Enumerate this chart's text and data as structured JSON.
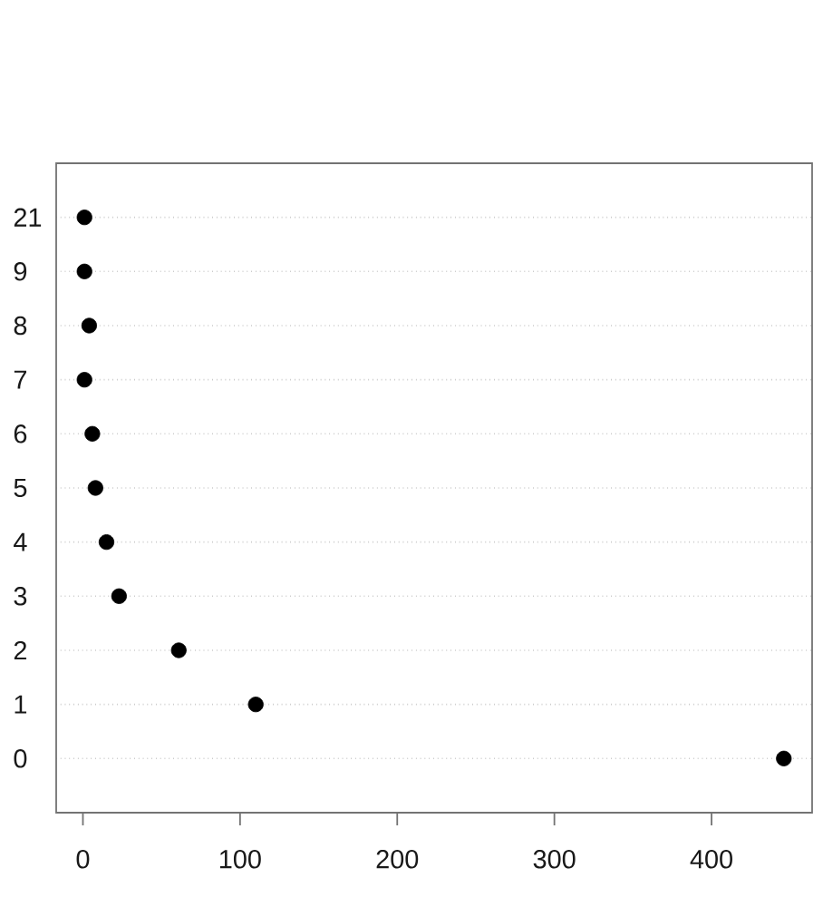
{
  "chart_data": {
    "type": "scatter",
    "orientation": "horizontal",
    "categories": [
      "21",
      "9",
      "8",
      "7",
      "6",
      "5",
      "4",
      "3",
      "2",
      "1",
      "0"
    ],
    "values": [
      1,
      1,
      4,
      1,
      6,
      8,
      15,
      23,
      61,
      110,
      446
    ],
    "color": "#000000",
    "marker": "circle",
    "grid": "y",
    "xlim": [
      -17,
      464
    ],
    "xticks": [
      0,
      100,
      200,
      300,
      400
    ]
  }
}
